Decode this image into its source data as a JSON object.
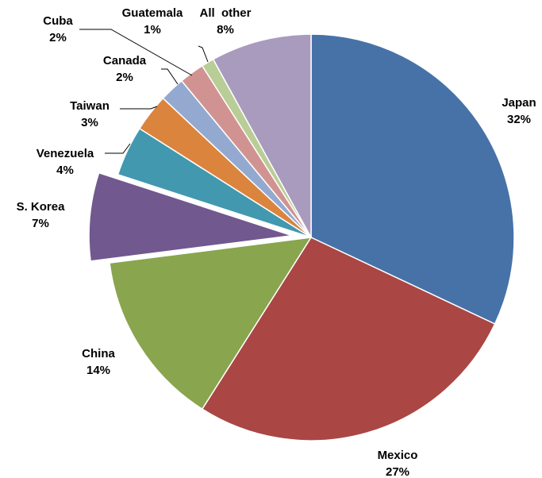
{
  "chart_data": {
    "type": "pie",
    "title": "",
    "unit": "%",
    "slices": [
      {
        "label": "Japan",
        "value": 32,
        "value_label": "32%",
        "color": "#4672A8"
      },
      {
        "label": "Mexico",
        "value": 27,
        "value_label": "27%",
        "color": "#AA4644"
      },
      {
        "label": "China",
        "value": 14,
        "value_label": "14%",
        "color": "#89A54E"
      },
      {
        "label": "S. Korea",
        "value": 7,
        "value_label": "7%",
        "color": "#71588F",
        "exploded": true
      },
      {
        "label": "Venezuela",
        "value": 4,
        "value_label": "4%",
        "color": "#4298AF"
      },
      {
        "label": "Taiwan",
        "value": 3,
        "value_label": "3%",
        "color": "#DB843D"
      },
      {
        "label": "Canada",
        "value": 2,
        "value_label": "2%",
        "color": "#93A9CF"
      },
      {
        "label": "Cuba",
        "value": 2,
        "value_label": "2%",
        "color": "#D19392"
      },
      {
        "label": "Guatemala",
        "value": 1,
        "value_label": "1%",
        "color": "#B9CD96"
      },
      {
        "label": "All  other",
        "value": 8,
        "value_label": "8%",
        "color": "#A99BBD"
      }
    ]
  }
}
